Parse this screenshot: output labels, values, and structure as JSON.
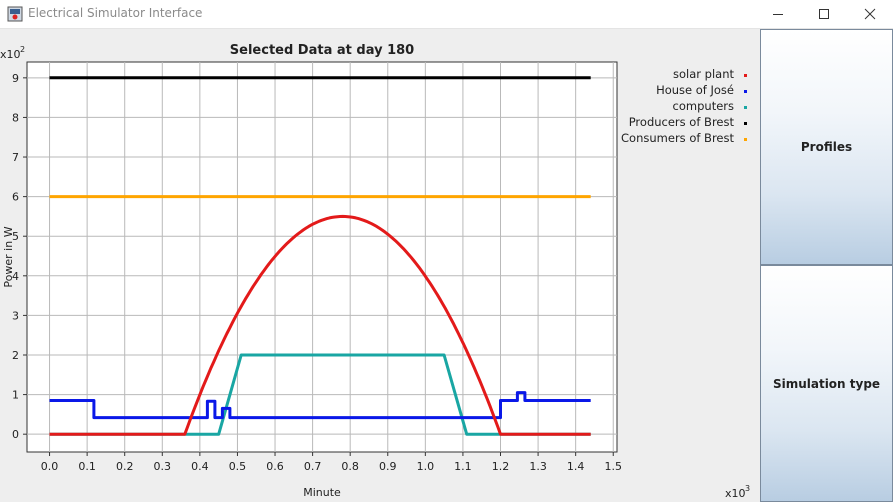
{
  "window": {
    "title": "Electrical Simulator Interface",
    "controls": {
      "minimize": "—",
      "maximize": "☐",
      "close": "✕"
    }
  },
  "sidebar": {
    "buttons": [
      {
        "label": "Profiles"
      },
      {
        "label": "Simulation type"
      }
    ]
  },
  "chart_data": {
    "type": "line",
    "title": "Selected Data at day 180",
    "xlabel": "Minute",
    "ylabel": "Power in W",
    "x_exponent_label": "x10",
    "x_exponent_power": "3",
    "y_exponent_label": "x10",
    "y_exponent_power": "2",
    "xlim": [
      -0.06,
      1.51
    ],
    "ylim": [
      -0.45,
      9.4
    ],
    "xticks": [
      "0.0",
      "0.1",
      "0.2",
      "0.3",
      "0.4",
      "0.5",
      "0.6",
      "0.7",
      "0.8",
      "0.9",
      "1.0",
      "1.1",
      "1.2",
      "1.3",
      "1.4",
      "1.5"
    ],
    "yticks": [
      "0",
      "1",
      "2",
      "3",
      "4",
      "5",
      "6",
      "7",
      "8",
      "9"
    ],
    "grid": true,
    "legend_position": "right",
    "series": [
      {
        "name": "solar plant",
        "color": "#e31a1a",
        "kind": "parabola",
        "start": 0.36,
        "end": 1.2,
        "peak_x": 0.78,
        "peak_y": 5.5,
        "base_y": 0,
        "x_range": [
          0,
          1.44
        ]
      },
      {
        "name": "House of José",
        "color": "#0a18e8",
        "points": [
          [
            0,
            0.85
          ],
          [
            0.118,
            0.85
          ],
          [
            0.118,
            0.42
          ],
          [
            0.42,
            0.42
          ],
          [
            0.42,
            0.83
          ],
          [
            0.44,
            0.83
          ],
          [
            0.44,
            0.42
          ],
          [
            0.46,
            0.42
          ],
          [
            0.46,
            0.65
          ],
          [
            0.48,
            0.65
          ],
          [
            0.48,
            0.42
          ],
          [
            1.2,
            0.42
          ],
          [
            1.2,
            0.85
          ],
          [
            1.245,
            0.85
          ],
          [
            1.245,
            1.05
          ],
          [
            1.265,
            1.05
          ],
          [
            1.265,
            0.85
          ],
          [
            1.44,
            0.85
          ]
        ]
      },
      {
        "name": "computers",
        "color": "#19a6a3",
        "points": [
          [
            0,
            0
          ],
          [
            0.45,
            0
          ],
          [
            0.51,
            2
          ],
          [
            1.05,
            2
          ],
          [
            1.11,
            0
          ],
          [
            1.44,
            0
          ]
        ]
      },
      {
        "name": "Producers of Brest",
        "color": "#000000",
        "points": [
          [
            0,
            9
          ],
          [
            1.44,
            9
          ]
        ]
      },
      {
        "name": "Consumers of Brest",
        "color": "#ffa500",
        "points": [
          [
            0,
            6
          ],
          [
            1.44,
            6
          ]
        ]
      }
    ]
  }
}
